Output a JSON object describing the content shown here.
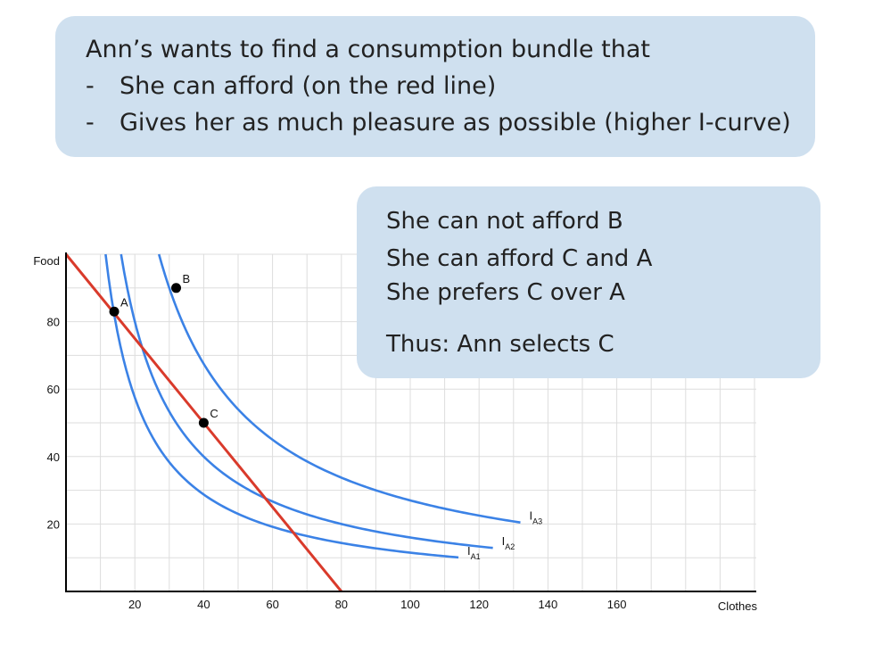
{
  "top_callout": {
    "title": "Ann’s wants to find a consumption bundle that",
    "bullets": [
      {
        "dash": "-",
        "text": "She can afford (on the red line)"
      },
      {
        "dash": "-",
        "text": "Gives her as much pleasure as possible (higher I-curve)"
      }
    ]
  },
  "side_callout": {
    "lines": [
      "She can not afford B",
      "She can afford C and A",
      "She prefers C over A"
    ],
    "conclusion": "Thus: Ann selects C"
  },
  "chart_data": {
    "type": "line",
    "xlabel": "Clothes",
    "ylabel": "Food",
    "xlim": [
      0,
      200
    ],
    "ylim": [
      0,
      100
    ],
    "xticks": [
      20,
      40,
      60,
      80,
      100,
      120,
      140,
      160
    ],
    "yticks": [
      20,
      40,
      60,
      80
    ],
    "grid": true,
    "colors": {
      "indifference": "#3b82e6",
      "budget": "#d93a2b",
      "points": "#000000"
    },
    "budget_line": {
      "x": [
        0,
        80
      ],
      "y": [
        100,
        0
      ]
    },
    "series": [
      {
        "name": "I",
        "sub": "A1",
        "k": 1150,
        "x_start": 11.5,
        "x_end": 114
      },
      {
        "name": "I",
        "sub": "A2",
        "k": 1600,
        "x_start": 16,
        "x_end": 124
      },
      {
        "name": "I",
        "sub": "A3",
        "k": 2700,
        "x_start": 27,
        "x_end": 132
      }
    ],
    "points": [
      {
        "label": "A",
        "x": 14,
        "y": 83
      },
      {
        "label": "B",
        "x": 32,
        "y": 90
      },
      {
        "label": "C",
        "x": 40,
        "y": 50
      }
    ]
  }
}
